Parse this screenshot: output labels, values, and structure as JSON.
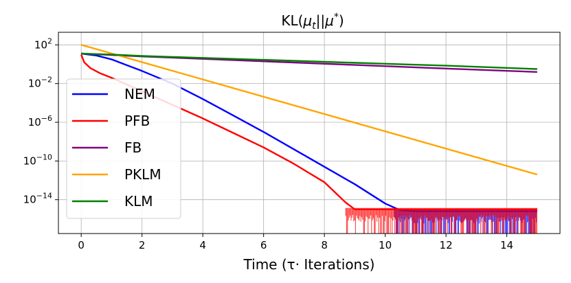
{
  "chart_data": {
    "type": "line",
    "title_prefix": "KL(",
    "title_mu": "μ",
    "title_sub": "t",
    "title_sep": "||",
    "title_star": "*",
    "title_suffix": ")",
    "xlabel": "Time (τ·  Iterations)",
    "ylabel": "",
    "yscale": "log",
    "xlim": [
      -0.75,
      15.75
    ],
    "ylim_log10": [
      -17.5,
      3.3
    ],
    "xticks": [
      0,
      2,
      4,
      6,
      8,
      10,
      12,
      14
    ],
    "yticks_log10": [
      2,
      -2,
      -6,
      -10,
      -14
    ],
    "ytick_labels": [
      {
        "base": "10",
        "exp": "2"
      },
      {
        "base": "10",
        "exp": "−2"
      },
      {
        "base": "10",
        "exp": "−6"
      },
      {
        "base": "10",
        "exp": "−10"
      },
      {
        "base": "10",
        "exp": "−14"
      }
    ],
    "grid": true,
    "legend_position": "center-left",
    "series": [
      {
        "name": "NEM",
        "color": "#0000ff",
        "x": [
          0,
          0.5,
          1,
          1.5,
          2,
          3,
          4,
          5,
          6,
          7,
          8,
          9,
          10,
          10.5,
          11,
          12,
          13,
          14,
          15
        ],
        "log10_y": [
          1.1,
          0.9,
          0.5,
          -0.1,
          -0.7,
          -2.0,
          -3.6,
          -5.3,
          -7.0,
          -8.8,
          -10.6,
          -12.4,
          -14.4,
          -15.1,
          -15.2,
          -15.2,
          -15.2,
          -15.2,
          -15.2
        ],
        "noise_from": 10.3
      },
      {
        "name": "PFB",
        "color": "#ff0000",
        "x": [
          0,
          0.1,
          0.3,
          0.6,
          1,
          2,
          3,
          4,
          5,
          6,
          7,
          8,
          8.7,
          9,
          10,
          11,
          12,
          13,
          14,
          15
        ],
        "log10_y": [
          1.0,
          0.2,
          -0.4,
          -0.9,
          -1.4,
          -2.8,
          -4.2,
          -5.6,
          -7.1,
          -8.6,
          -10.3,
          -12.2,
          -14.3,
          -15.0,
          -15.0,
          -15.0,
          -15.0,
          -15.0,
          -15.0,
          -15.0
        ],
        "noise_from": 8.7
      },
      {
        "name": "FB",
        "color": "#800080",
        "x": [
          0,
          1,
          2,
          4,
          6,
          8,
          10,
          12,
          15
        ],
        "log10_y": [
          1.1,
          0.95,
          0.8,
          0.55,
          0.3,
          0.05,
          -0.2,
          -0.45,
          -0.8
        ]
      },
      {
        "name": "PKLM",
        "color": "#ffa500",
        "x": [
          0,
          15
        ],
        "log10_y": [
          2.0,
          -11.4
        ]
      },
      {
        "name": "KLM",
        "color": "#008000",
        "x": [
          0,
          1,
          2,
          4,
          6,
          8,
          10,
          12,
          15
        ],
        "log10_y": [
          1.1,
          1.0,
          0.85,
          0.65,
          0.45,
          0.25,
          0.05,
          -0.15,
          -0.5
        ]
      }
    ]
  }
}
